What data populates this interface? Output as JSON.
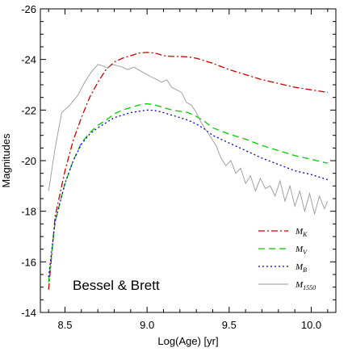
{
  "chart_data": {
    "type": "line",
    "xlabel": "Log(Age) [yr]",
    "ylabel": "Magnitudes",
    "xlim": [
      8.35,
      10.15
    ],
    "ylim": [
      -14,
      -26
    ],
    "y_inverted": true,
    "xticks": [
      "8.5",
      "9.0",
      "9.5",
      "10.0"
    ],
    "xtick_values": [
      8.5,
      9.0,
      9.5,
      10.0
    ],
    "yticks": [
      "-26",
      "-24",
      "-22",
      "-20",
      "-18",
      "-16",
      "-14"
    ],
    "ytick_values": [
      -26,
      -24,
      -22,
      -20,
      -18,
      -16,
      -14
    ],
    "annotation": "Bessel & Brett",
    "legend_position": "bottom-right",
    "series": [
      {
        "name": "M",
        "subscript": "K",
        "color": "#cc0000",
        "style": "dash-dot",
        "x": [
          8.4,
          8.44,
          8.5,
          8.55,
          8.6,
          8.65,
          8.7,
          8.75,
          8.8,
          8.85,
          8.9,
          8.95,
          9.0,
          9.05,
          9.1,
          9.15,
          9.2,
          9.25,
          9.3,
          9.35,
          9.4,
          9.5,
          9.6,
          9.7,
          9.8,
          9.9,
          10.0,
          10.1
        ],
        "y": [
          -14.9,
          -17.8,
          -19.6,
          -20.8,
          -21.7,
          -22.5,
          -23.1,
          -23.6,
          -23.9,
          -24.05,
          -24.15,
          -24.25,
          -24.28,
          -24.25,
          -24.15,
          -24.12,
          -24.12,
          -24.1,
          -24.05,
          -23.95,
          -23.85,
          -23.6,
          -23.4,
          -23.2,
          -23.05,
          -22.9,
          -22.8,
          -22.7
        ]
      },
      {
        "name": "M",
        "subscript": "V",
        "color": "#00cc00",
        "style": "dashed",
        "x": [
          8.4,
          8.44,
          8.5,
          8.55,
          8.6,
          8.65,
          8.7,
          8.75,
          8.8,
          8.85,
          8.9,
          8.95,
          9.0,
          9.05,
          9.1,
          9.15,
          9.2,
          9.25,
          9.3,
          9.35,
          9.4,
          9.5,
          9.6,
          9.7,
          9.8,
          9.9,
          10.0,
          10.1
        ],
        "y": [
          -15.2,
          -17.6,
          -19.1,
          -20.0,
          -20.7,
          -21.1,
          -21.4,
          -21.6,
          -21.85,
          -22.0,
          -22.1,
          -22.2,
          -22.25,
          -22.2,
          -22.1,
          -22.0,
          -21.95,
          -21.9,
          -21.75,
          -21.55,
          -21.3,
          -21.05,
          -20.85,
          -20.6,
          -20.4,
          -20.2,
          -20.05,
          -19.9
        ]
      },
      {
        "name": "M",
        "subscript": "B",
        "color": "#0000cc",
        "style": "dotted",
        "x": [
          8.4,
          8.44,
          8.5,
          8.55,
          8.6,
          8.65,
          8.7,
          8.75,
          8.8,
          8.85,
          8.9,
          8.95,
          9.0,
          9.05,
          9.1,
          9.15,
          9.2,
          9.25,
          9.3,
          9.35,
          9.4,
          9.5,
          9.6,
          9.7,
          9.8,
          9.9,
          10.0,
          10.1
        ],
        "y": [
          -15.4,
          -17.6,
          -19.1,
          -20.0,
          -20.65,
          -21.05,
          -21.3,
          -21.5,
          -21.7,
          -21.8,
          -21.9,
          -21.95,
          -22.0,
          -21.98,
          -21.9,
          -21.8,
          -21.7,
          -21.6,
          -21.45,
          -21.25,
          -21.0,
          -20.7,
          -20.4,
          -20.1,
          -19.85,
          -19.6,
          -19.45,
          -19.25
        ]
      },
      {
        "name": "M",
        "subscript": "1550",
        "color": "#999999",
        "style": "solid",
        "x": [
          8.4,
          8.44,
          8.48,
          8.53,
          8.58,
          8.62,
          8.66,
          8.7,
          8.73,
          8.76,
          8.79,
          8.82,
          8.85,
          8.88,
          8.92,
          8.96,
          9.0,
          9.03,
          9.06,
          9.09,
          9.12,
          9.15,
          9.18,
          9.21,
          9.24,
          9.27,
          9.3,
          9.33,
          9.36,
          9.39,
          9.42,
          9.45,
          9.48,
          9.51,
          9.54,
          9.57,
          9.6,
          9.63,
          9.66,
          9.69,
          9.72,
          9.75,
          9.78,
          9.81,
          9.84,
          9.87,
          9.9,
          9.93,
          9.96,
          9.99,
          10.02,
          10.05,
          10.08,
          10.1
        ],
        "y": [
          -18.8,
          -20.5,
          -21.9,
          -22.2,
          -22.6,
          -23.1,
          -23.5,
          -23.8,
          -23.75,
          -23.65,
          -23.8,
          -23.75,
          -23.7,
          -23.6,
          -23.7,
          -23.55,
          -23.4,
          -23.3,
          -23.2,
          -23.1,
          -23.2,
          -22.9,
          -22.8,
          -22.7,
          -22.3,
          -22.2,
          -21.9,
          -21.5,
          -21.2,
          -20.9,
          -20.6,
          -20.1,
          -19.8,
          -20.0,
          -19.5,
          -19.7,
          -19.1,
          -19.4,
          -18.8,
          -19.3,
          -18.9,
          -19.0,
          -18.6,
          -19.2,
          -18.4,
          -19.0,
          -18.2,
          -18.8,
          -18.0,
          -18.7,
          -17.9,
          -18.6,
          -18.1,
          -18.4
        ]
      }
    ]
  }
}
